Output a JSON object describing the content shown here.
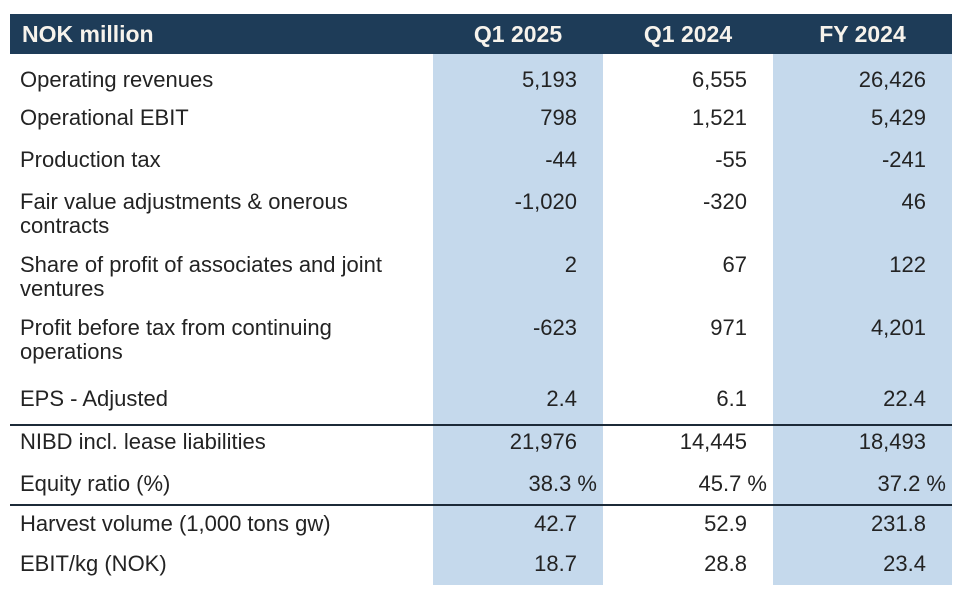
{
  "colors": {
    "header_bg": "#1e3c58",
    "header_text": "#f7f3ec",
    "band_bg": "#c5d9ec",
    "body_text": "#232323",
    "rule_line": "#1c2a38"
  },
  "table": {
    "unit_header": "NOK million",
    "columns": [
      "Q1 2025",
      "Q1 2024",
      "FY 2024"
    ],
    "rows": [
      {
        "lines": [
          "Operating revenues"
        ],
        "values": [
          "5,193",
          "6,555",
          "26,426"
        ]
      },
      {
        "lines": [
          "Operational EBIT"
        ],
        "values": [
          "798",
          "1,521",
          "5,429"
        ]
      },
      {
        "lines": [
          "Production tax"
        ],
        "values": [
          "-44",
          "-55",
          "-241"
        ]
      },
      {
        "lines": [
          "Fair value adjustments & onerous",
          "contracts"
        ],
        "values": [
          "-1,020",
          "-320",
          "46"
        ]
      },
      {
        "lines": [
          "Share of profit of associates and joint",
          "ventures"
        ],
        "values": [
          "2",
          "67",
          "122"
        ]
      },
      {
        "lines": [
          "Profit before tax from continuing",
          "operations"
        ],
        "values": [
          "-623",
          "971",
          "4,201"
        ]
      },
      {
        "lines": [
          "EPS - Adjusted"
        ],
        "values": [
          "2.4",
          "6.1",
          "22.4"
        ]
      },
      {
        "lines": [
          "NIBD incl. lease liabilities"
        ],
        "values": [
          "21,976",
          "14,445",
          "18,493"
        ]
      },
      {
        "lines": [
          "Equity ratio (%)"
        ],
        "values": [
          "38.3 %",
          "45.7 %",
          "37.2 %"
        ]
      },
      {
        "lines": [
          "Harvest volume (1,000 tons gw)"
        ],
        "values": [
          "42.7",
          "52.9",
          "231.8"
        ]
      },
      {
        "lines": [
          "EBIT/kg (NOK)"
        ],
        "values": [
          "18.7",
          "28.8",
          "23.4"
        ]
      }
    ]
  }
}
